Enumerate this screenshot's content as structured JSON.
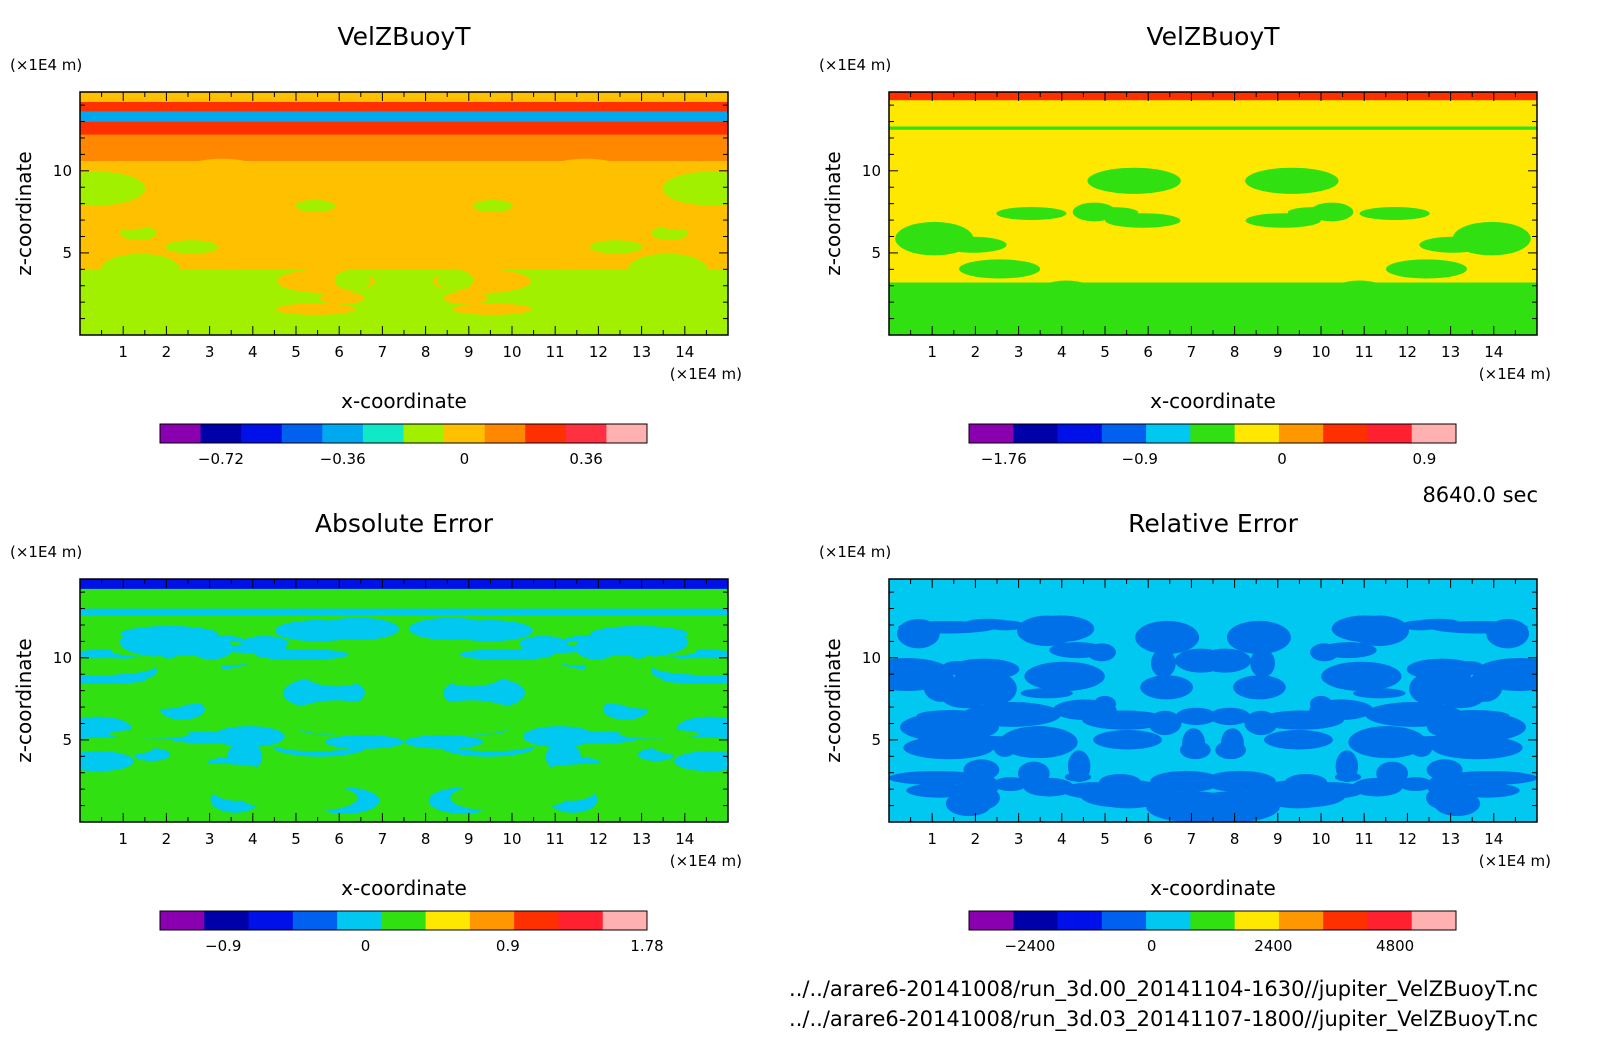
{
  "timestamp": "8640.0 sec",
  "source_files": [
    "../../arare6-20141008/run_3d.00_20141104-1630//jupiter_VelZBuoyT.nc",
    "../../arare6-20141008/run_3d.03_20141107-1800//jupiter_VelZBuoyT.nc"
  ],
  "chart_data": [
    {
      "type": "heatmap",
      "title": "VelZBuoyT",
      "xlabel": "x-coordinate",
      "ylabel": "z-coordinate",
      "x_unit": "(×1E4 m)",
      "y_unit": "(×1E4 m)",
      "xlim": [
        0,
        15
      ],
      "ylim": [
        0,
        14.8
      ],
      "xticks": [
        1,
        2,
        3,
        4,
        5,
        6,
        7,
        8,
        9,
        10,
        11,
        12,
        13,
        14
      ],
      "yticks": [
        5,
        10
      ],
      "colorbar": {
        "min": -0.9,
        "max": 0.54,
        "labels": [
          -0.72,
          -0.36,
          0,
          0.36
        ],
        "colors": [
          "#8a00b0",
          "#0000a8",
          "#0010e8",
          "#0060f0",
          "#00a8f0",
          "#10e8c8",
          "#a0f000",
          "#ffc000",
          "#ff8800",
          "#ff3000",
          "#ff3040",
          "#ffb0b0"
        ]
      },
      "field": {
        "background": "#ffc000",
        "layers": [
          {
            "z": [
              0,
              4
            ],
            "color": "#a0f000"
          },
          {
            "z": [
              4,
              10.6
            ],
            "color": "#ffc000"
          },
          {
            "z": [
              10.6,
              12.2
            ],
            "color": "#ff8800"
          },
          {
            "z": [
              12.2,
              13.0
            ],
            "color": "#ff3000"
          },
          {
            "z": [
              13.0,
              13.6
            ],
            "color": "#00a8f0"
          },
          {
            "z": [
              13.6,
              14.2
            ],
            "color": "#ff3000"
          },
          {
            "z": [
              14.2,
              14.8
            ],
            "color": "#ffc000"
          }
        ]
      }
    },
    {
      "type": "heatmap",
      "title": "VelZBuoyT",
      "xlabel": "x-coordinate",
      "ylabel": "z-coordinate",
      "x_unit": "(×1E4 m)",
      "y_unit": "(×1E4 m)",
      "xlim": [
        0,
        15
      ],
      "ylim": [
        0,
        14.8
      ],
      "xticks": [
        1,
        2,
        3,
        4,
        5,
        6,
        7,
        8,
        9,
        10,
        11,
        12,
        13,
        14
      ],
      "yticks": [
        5,
        10
      ],
      "colorbar": {
        "min": -1.98,
        "max": 1.1,
        "labels": [
          -1.76,
          -0.9,
          0,
          0.9
        ],
        "colors": [
          "#8a00b0",
          "#0000a8",
          "#0010e8",
          "#0060f0",
          "#00c8f0",
          "#30e010",
          "#ffe800",
          "#ff9800",
          "#ff3000",
          "#ff2030",
          "#ffb0b0"
        ]
      },
      "field": {
        "background": "#ffe800",
        "layers": [
          {
            "z": [
              0,
              3.2
            ],
            "color": "#30e010"
          },
          {
            "z": [
              3.2,
              12.5
            ],
            "color": "#ffe800"
          },
          {
            "z": [
              12.5,
              12.7
            ],
            "color": "#30e010"
          },
          {
            "z": [
              12.7,
              14.3
            ],
            "color": "#ffe800"
          },
          {
            "z": [
              14.3,
              14.8
            ],
            "color": "#ff3000"
          }
        ]
      }
    },
    {
      "type": "heatmap",
      "title": "Absolute Error",
      "xlabel": "x-coordinate",
      "ylabel": "z-coordinate",
      "x_unit": "(×1E4 m)",
      "y_unit": "(×1E4 m)",
      "xlim": [
        0,
        15
      ],
      "ylim": [
        0,
        14.8
      ],
      "xticks": [
        1,
        2,
        3,
        4,
        5,
        6,
        7,
        8,
        9,
        10,
        11,
        12,
        13,
        14
      ],
      "yticks": [
        5,
        10
      ],
      "colorbar": {
        "min": -1.3,
        "max": 1.78,
        "labels": [
          -0.9,
          0,
          0.9,
          1.78
        ],
        "colors": [
          "#8a00b0",
          "#0000a8",
          "#0010e8",
          "#0060f0",
          "#00c8f0",
          "#30e010",
          "#ffe800",
          "#ff9800",
          "#ff3000",
          "#ff2030",
          "#ffb0b0"
        ]
      },
      "field": {
        "background": "#30e010",
        "layers": [
          {
            "z": [
              0,
              12.6
            ],
            "color": "#30e010"
          },
          {
            "z": [
              12.6,
              13.0
            ],
            "color": "#00c8f0"
          },
          {
            "z": [
              13.0,
              14.2
            ],
            "color": "#30e010"
          },
          {
            "z": [
              14.2,
              14.8
            ],
            "color": "#0010e8"
          }
        ]
      }
    },
    {
      "type": "heatmap",
      "title": "Relative Error",
      "xlabel": "x-coordinate",
      "ylabel": "z-coordinate",
      "x_unit": "(×1E4 m)",
      "y_unit": "(×1E4 m)",
      "xlim": [
        0,
        15
      ],
      "ylim": [
        0,
        14.8
      ],
      "xticks": [
        1,
        2,
        3,
        4,
        5,
        6,
        7,
        8,
        9,
        10,
        11,
        12,
        13,
        14
      ],
      "yticks": [
        5,
        10
      ],
      "colorbar": {
        "min": -3600,
        "max": 6000,
        "labels": [
          -2400,
          0,
          2400,
          4800
        ],
        "colors": [
          "#8a00b0",
          "#0000a8",
          "#0010e8",
          "#0060f0",
          "#00c8f0",
          "#30e010",
          "#ffe800",
          "#ff9800",
          "#ff3000",
          "#ff2030",
          "#ffb0b0"
        ]
      },
      "field": {
        "background": "#00c8f0",
        "layers": [
          {
            "z": [
              0,
              14.8
            ],
            "color": "#00c8f0"
          }
        ]
      }
    }
  ]
}
